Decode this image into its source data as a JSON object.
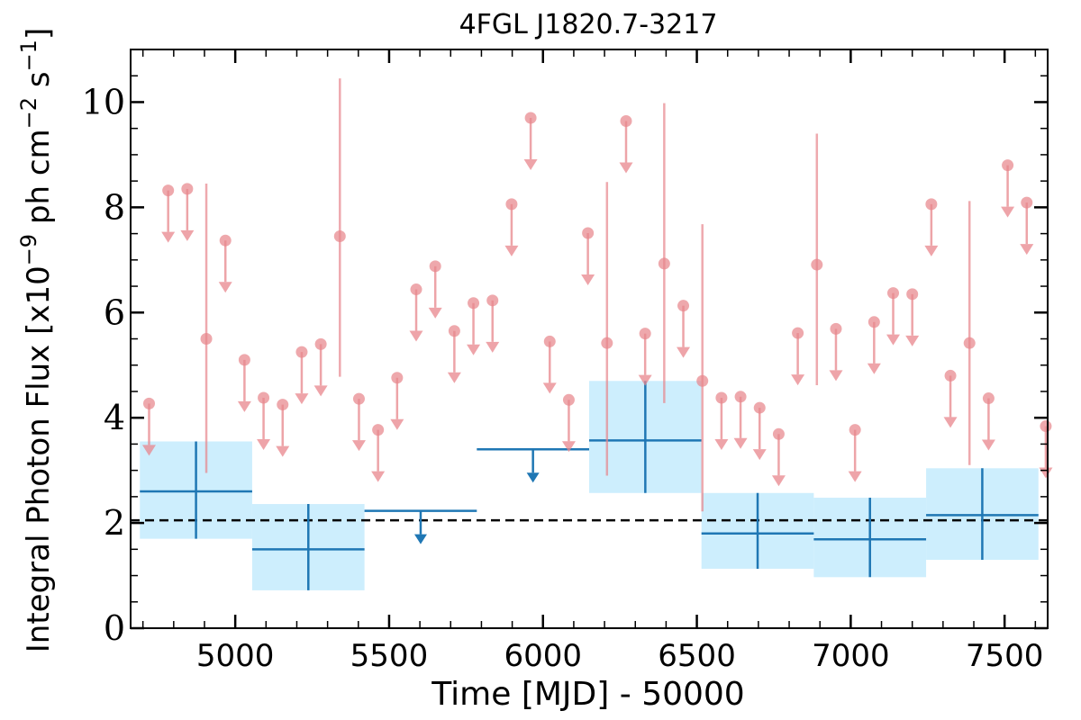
{
  "chart_data": {
    "type": "scatter",
    "title": "4FGL J1820.7-3217",
    "xlabel": "Time [MJD] - 50000",
    "ylabel": "Integral Photon Flux [x10",
    "ylabel_exp1": "−9",
    "ylabel_mid": " ph cm",
    "ylabel_exp2": "−2",
    "ylabel_mid2": " s",
    "ylabel_exp3": "−1",
    "ylabel_end": "]",
    "xlim": [
      4660,
      7640
    ],
    "ylim": [
      0,
      11
    ],
    "xticks": [
      5000,
      5500,
      6000,
      6500,
      7000,
      7500
    ],
    "xtick_labels": [
      "5000",
      "5500",
      "6000",
      "6500",
      "7000",
      "7500"
    ],
    "yticks": [
      0,
      2,
      4,
      6,
      8,
      10
    ],
    "ytick_labels": [
      "0",
      "2",
      "4",
      "6",
      "8",
      "10"
    ],
    "mean_flux": 2.05,
    "colors": {
      "fine_bins": "#e8868c",
      "coarse_bins": "#1f77b4",
      "coarse_band": "#cdeefd",
      "mean_line": "#000000"
    },
    "fine_bins": [
      {
        "x": 4720,
        "y": 4.27,
        "upper_limit": true
      },
      {
        "x": 4782,
        "y": 8.32,
        "upper_limit": true
      },
      {
        "x": 4844,
        "y": 8.35,
        "upper_limit": true
      },
      {
        "x": 4906,
        "y": 5.5,
        "upper_limit": false,
        "err_low": 2.95,
        "err_high": 8.45
      },
      {
        "x": 4968,
        "y": 7.37,
        "upper_limit": true
      },
      {
        "x": 5030,
        "y": 5.1,
        "upper_limit": true
      },
      {
        "x": 5092,
        "y": 4.38,
        "upper_limit": true
      },
      {
        "x": 5154,
        "y": 4.25,
        "upper_limit": true
      },
      {
        "x": 5216,
        "y": 5.25,
        "upper_limit": true
      },
      {
        "x": 5278,
        "y": 5.4,
        "upper_limit": true
      },
      {
        "x": 5340,
        "y": 7.45,
        "upper_limit": false,
        "err_low": 4.78,
        "err_high": 10.45
      },
      {
        "x": 5402,
        "y": 4.36,
        "upper_limit": true
      },
      {
        "x": 5464,
        "y": 3.77,
        "upper_limit": true
      },
      {
        "x": 5526,
        "y": 4.76,
        "upper_limit": true
      },
      {
        "x": 5588,
        "y": 6.44,
        "upper_limit": true
      },
      {
        "x": 5650,
        "y": 6.88,
        "upper_limit": true
      },
      {
        "x": 5712,
        "y": 5.65,
        "upper_limit": true
      },
      {
        "x": 5774,
        "y": 6.18,
        "upper_limit": true
      },
      {
        "x": 5836,
        "y": 6.23,
        "upper_limit": true
      },
      {
        "x": 5898,
        "y": 8.06,
        "upper_limit": true
      },
      {
        "x": 5960,
        "y": 9.7,
        "upper_limit": true
      },
      {
        "x": 6022,
        "y": 5.45,
        "upper_limit": true
      },
      {
        "x": 6084,
        "y": 4.34,
        "upper_limit": true
      },
      {
        "x": 6146,
        "y": 7.51,
        "upper_limit": true
      },
      {
        "x": 6208,
        "y": 5.42,
        "upper_limit": false,
        "err_low": 2.9,
        "err_high": 8.48
      },
      {
        "x": 6270,
        "y": 9.64,
        "upper_limit": true
      },
      {
        "x": 6332,
        "y": 5.6,
        "upper_limit": true
      },
      {
        "x": 6394,
        "y": 6.93,
        "upper_limit": false,
        "err_low": 4.28,
        "err_high": 9.98
      },
      {
        "x": 6456,
        "y": 6.13,
        "upper_limit": true
      },
      {
        "x": 6518,
        "y": 4.7,
        "upper_limit": false,
        "err_low": 2.22,
        "err_high": 7.68
      },
      {
        "x": 6580,
        "y": 4.38,
        "upper_limit": true
      },
      {
        "x": 6642,
        "y": 4.4,
        "upper_limit": true
      },
      {
        "x": 6704,
        "y": 4.19,
        "upper_limit": true
      },
      {
        "x": 6766,
        "y": 3.69,
        "upper_limit": true
      },
      {
        "x": 6828,
        "y": 5.61,
        "upper_limit": true
      },
      {
        "x": 6890,
        "y": 6.91,
        "upper_limit": false,
        "err_low": 4.62,
        "err_high": 9.4
      },
      {
        "x": 6952,
        "y": 5.69,
        "upper_limit": true
      },
      {
        "x": 7014,
        "y": 3.77,
        "upper_limit": true
      },
      {
        "x": 7076,
        "y": 5.82,
        "upper_limit": true
      },
      {
        "x": 7138,
        "y": 6.37,
        "upper_limit": true
      },
      {
        "x": 7200,
        "y": 6.35,
        "upper_limit": true
      },
      {
        "x": 7262,
        "y": 8.06,
        "upper_limit": true
      },
      {
        "x": 7324,
        "y": 4.8,
        "upper_limit": true
      },
      {
        "x": 7386,
        "y": 5.42,
        "upper_limit": false,
        "err_low": 3.1,
        "err_high": 8.12
      },
      {
        "x": 7448,
        "y": 4.37,
        "upper_limit": true
      },
      {
        "x": 7510,
        "y": 8.8,
        "upper_limit": true
      },
      {
        "x": 7572,
        "y": 8.09,
        "upper_limit": true
      },
      {
        "x": 7634,
        "y": 3.84,
        "upper_limit": true
      }
    ],
    "coarse_bins": [
      {
        "x_start": 4690,
        "x_end": 5055,
        "y": 2.6,
        "upper_limit": false,
        "err_low": 1.7,
        "err_high": 3.55
      },
      {
        "x_start": 5055,
        "x_end": 5420,
        "y": 1.5,
        "upper_limit": false,
        "err_low": 0.72,
        "err_high": 2.36
      },
      {
        "x_start": 5420,
        "x_end": 5785,
        "y": 2.23,
        "upper_limit": true
      },
      {
        "x_start": 5785,
        "x_end": 6150,
        "y": 3.4,
        "upper_limit": true
      },
      {
        "x_start": 6150,
        "x_end": 6515,
        "y": 3.57,
        "upper_limit": false,
        "err_low": 2.57,
        "err_high": 4.7
      },
      {
        "x_start": 6515,
        "x_end": 6880,
        "y": 1.8,
        "upper_limit": false,
        "err_low": 1.13,
        "err_high": 2.57
      },
      {
        "x_start": 6880,
        "x_end": 7245,
        "y": 1.69,
        "upper_limit": false,
        "err_low": 0.97,
        "err_high": 2.48
      },
      {
        "x_start": 7245,
        "x_end": 7610,
        "y": 2.15,
        "upper_limit": false,
        "err_low": 1.3,
        "err_high": 3.04
      }
    ]
  }
}
